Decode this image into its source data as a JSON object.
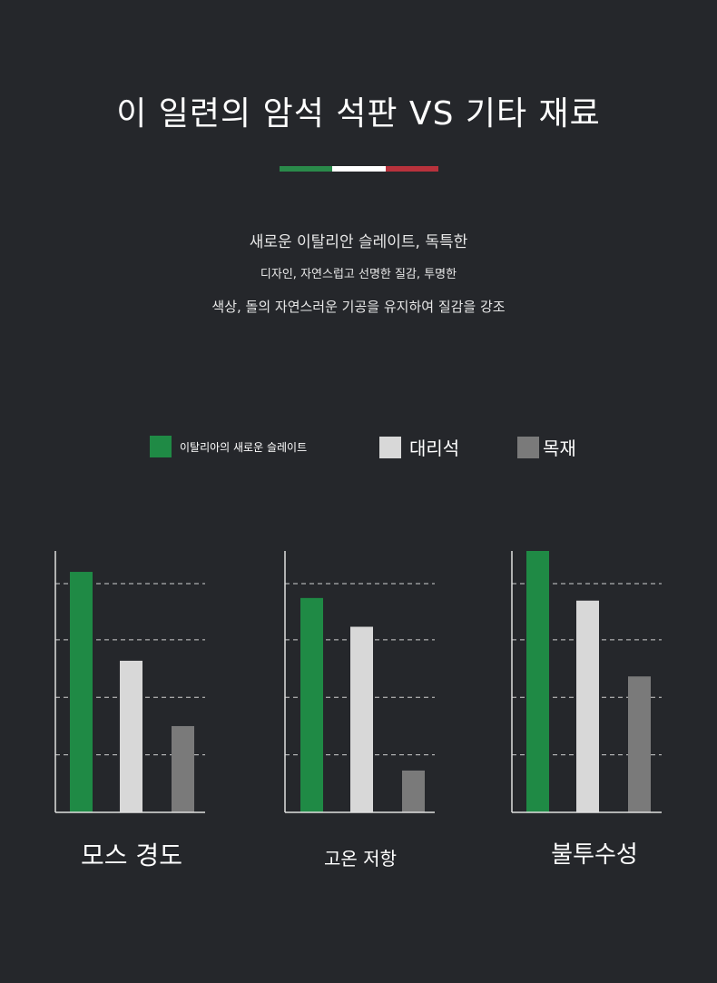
{
  "header": {
    "title": "이 일련의 암석 석판 VS 기타 재료",
    "flag_colors": [
      "#2a8a4a",
      "#ffffff",
      "#b8323c"
    ],
    "line1": "새로운 이탈리안 슬레이트, 독특한",
    "line2": "디자인, 자연스럽고 선명한 질감, 투명한",
    "line3": "색상, 돌의 자연스러운 기공을 유지하여 질감을 강조"
  },
  "chart_data": [
    {
      "type": "bar",
      "title": "모스 경도",
      "series": [
        {
          "name": "이탈리아의 새로운 슬레이트",
          "values": [
            4.6
          ]
        },
        {
          "name": "대리석",
          "values": [
            2.9
          ]
        },
        {
          "name": "목재",
          "values": [
            1.65
          ]
        }
      ],
      "ylim": [
        0,
        5
      ],
      "grid": true
    },
    {
      "type": "bar",
      "title": "고온 저항",
      "series": [
        {
          "name": "이탈리아의 새로운 슬레이트",
          "values": [
            4.1
          ]
        },
        {
          "name": "대리석",
          "values": [
            3.55
          ]
        },
        {
          "name": "목재",
          "values": [
            0.8
          ]
        }
      ],
      "ylim": [
        0,
        5
      ],
      "grid": true
    },
    {
      "type": "bar",
      "title": "불투수성",
      "series": [
        {
          "name": "이탈리아의 새로운 슬레이트",
          "values": [
            5.0
          ]
        },
        {
          "name": "대리석",
          "values": [
            4.05
          ]
        },
        {
          "name": "목재",
          "values": [
            2.6
          ]
        }
      ],
      "ylim": [
        0,
        5
      ],
      "grid": true
    }
  ],
  "legend": {
    "items": [
      {
        "label": "이탈리아의 새로운 슬레이트",
        "color": "#1f8a45"
      },
      {
        "label": "대리석",
        "color": "#d8d8d8"
      },
      {
        "label": "목재",
        "color": "#7a7a7a"
      }
    ]
  }
}
